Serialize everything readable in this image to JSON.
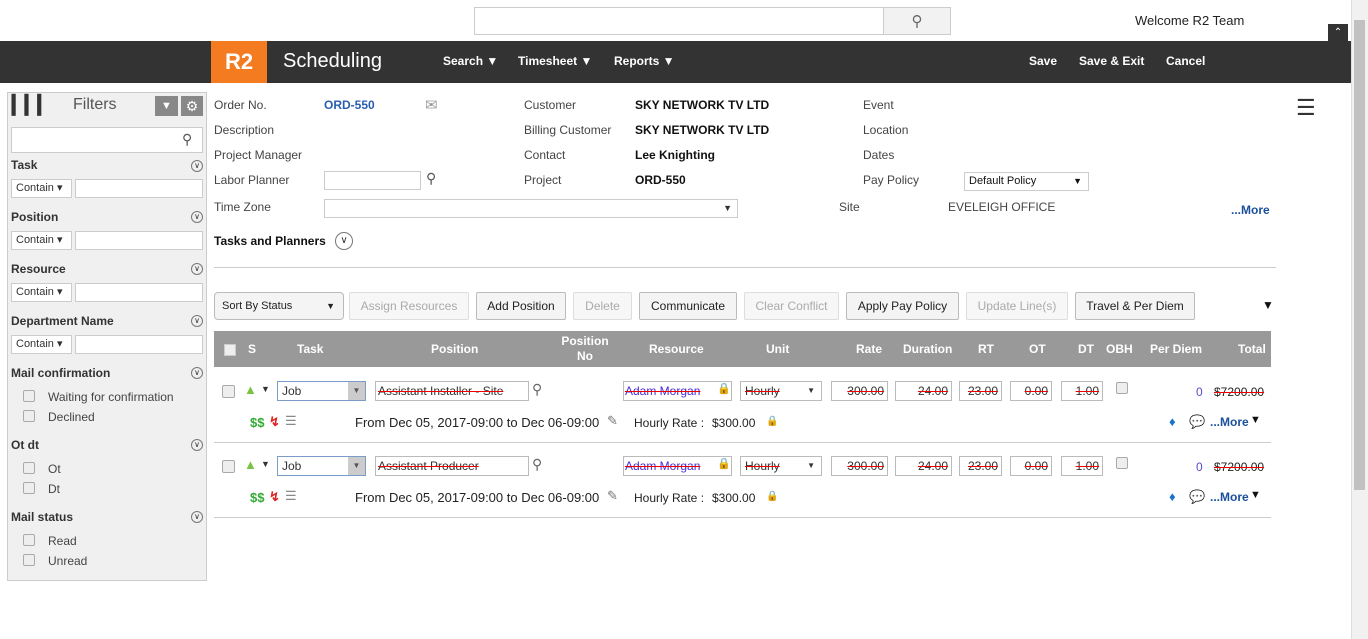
{
  "top": {
    "search_placeholder": "",
    "welcome": "Welcome R2 Team"
  },
  "nav": {
    "logo": "R2",
    "title": "Scheduling",
    "menus": [
      "Search",
      "Timesheet",
      "Reports"
    ],
    "actions": [
      "Save",
      "Save & Exit",
      "Cancel"
    ],
    "brand_color": "#f47b20"
  },
  "filters": {
    "title": "Filters",
    "sections": [
      {
        "label": "Task",
        "op": "Contain"
      },
      {
        "label": "Position",
        "op": "Contain"
      },
      {
        "label": "Resource",
        "op": "Contain"
      },
      {
        "label": "Department Name",
        "op": "Contain"
      }
    ],
    "mail_confirmation": {
      "label": "Mail confirmation",
      "options": [
        "Waiting for confirmation",
        "Declined"
      ]
    },
    "ot_dt": {
      "label": "Ot dt",
      "options": [
        "Ot",
        "Dt"
      ]
    },
    "mail_status": {
      "label": "Mail status",
      "options": [
        "Read",
        "Unread"
      ]
    }
  },
  "order": {
    "order_no_label": "Order No.",
    "order_no": "ORD-550",
    "description_label": "Description",
    "pm_label": "Project Manager",
    "labor_planner_label": "Labor Planner",
    "time_zone_label": "Time Zone",
    "customer_label": "Customer",
    "customer": "SKY NETWORK TV LTD",
    "billing_label": "Billing Customer",
    "billing": "SKY NETWORK TV LTD",
    "contact_label": "Contact",
    "contact": "Lee Knighting",
    "project_label": "Project",
    "project": "ORD-550",
    "event_label": "Event",
    "location_label": "Location",
    "dates_label": "Dates",
    "pay_policy_label": "Pay Policy",
    "pay_policy": "Default Policy",
    "site_label": "Site",
    "site": "EVELEIGH OFFICE",
    "more": "...More",
    "tasks_planners": "Tasks and Planners"
  },
  "toolbar": {
    "sort": "Sort By Status",
    "buttons": [
      "Assign Resources",
      "Add Position",
      "Delete",
      "Communicate",
      "Clear Conflict",
      "Apply Pay Policy",
      "Update Line(s)",
      "Travel & Per Diem"
    ]
  },
  "table": {
    "headers": [
      "S",
      "Task",
      "Position",
      "Position No",
      "Resource",
      "Unit",
      "Rate",
      "Duration",
      "RT",
      "OT",
      "DT",
      "OBH",
      "Per Diem",
      "Total"
    ],
    "rows": [
      {
        "task": "Job",
        "position": "Assistant Installer - Site",
        "resource": "Adam Morgan",
        "unit": "Hourly",
        "rate": "300.00",
        "duration": "24.00",
        "rt": "23.00",
        "ot": "0.00",
        "dt": "1.00",
        "per_diem": "0",
        "total": "$7200.00",
        "dates": "From Dec 05, 2017-09:00 to Dec 06-09:00",
        "rate_label": "Hourly Rate :",
        "rate_value": "$300.00",
        "more": "...More"
      },
      {
        "task": "Job",
        "position": "Assistant Producer",
        "resource": "Adam Morgan",
        "unit": "Hourly",
        "rate": "300.00",
        "duration": "24.00",
        "rt": "23.00",
        "ot": "0.00",
        "dt": "1.00",
        "per_diem": "0",
        "total": "$7200.00",
        "dates": "From Dec 05, 2017-09:00 to Dec 06-09:00",
        "rate_label": "Hourly Rate :",
        "rate_value": "$300.00",
        "more": "...More"
      }
    ]
  }
}
